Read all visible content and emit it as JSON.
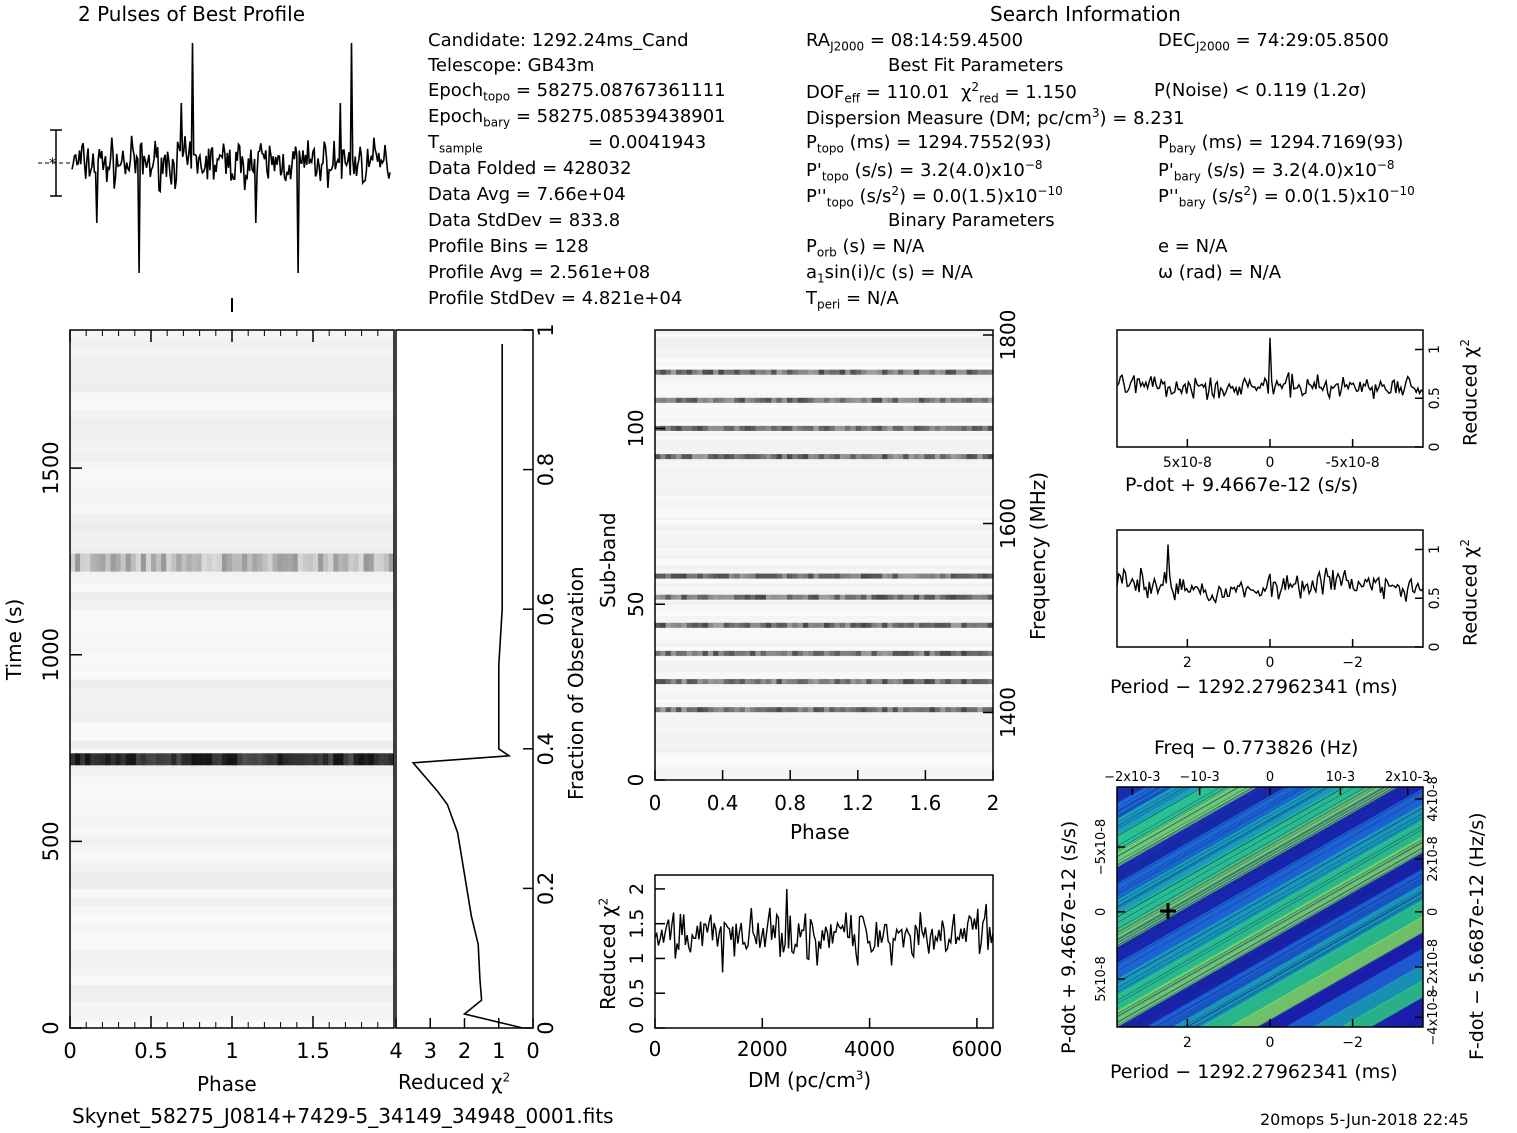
{
  "header": {
    "profile_title": "2 Pulses of Best Profile",
    "search_title": "Search Information"
  },
  "info": {
    "candidate": "Candidate:  1292.24ms_Cand",
    "telescope": "Telescope:  GB43m",
    "epoch_topo_label": "Epoch",
    "epoch_topo_sub": "topo",
    "epoch_topo_value": "= 58275.08767361111",
    "epoch_bary_label": "Epoch",
    "epoch_bary_sub": "bary",
    "epoch_bary_value": "= 58275.08539438901",
    "t_sample_label": "T",
    "t_sample_sub": "sample",
    "t_sample_value": "=   0.0041943",
    "data_folded": "Data Folded      =   428032",
    "data_avg": "Data Avg         =   7.66e+04",
    "data_stddev": "Data StdDev      =   833.8",
    "profile_bins": "Profile Bins     =   128",
    "profile_avg": "Profile Avg      =   2.561e+08",
    "profile_stddev": "Profile StdDev   =   4.821e+04",
    "ra": "= 08:14:59.4500",
    "dec": "= 74:29:05.8500",
    "best_fit_title": "Best Fit Parameters",
    "dof": "= 110.01",
    "chi2": "= 1.150",
    "pnoise": "P(Noise) < 0.119   (1.2σ)",
    "dm_line": "Dispersion Measure (DM; pc/cm",
    "dm_value": ") = 8.231",
    "p_topo": "(ms) =   1294.7552(93)",
    "p_bary": "(ms) =   1294.7169(93)",
    "pd_topo": "(s/s) =   3.2(4.0)x10",
    "pd_bary": "(s/s) =   3.2(4.0)x10",
    "pdd_topo": "(s/s",
    "pdd_topo_value": ") = 0.0(1.5)x10",
    "pdd_bary_value": ") = 0.0(1.5)x10",
    "binary_title": "Binary Parameters",
    "porb": "(s) = N/A",
    "asini": "a",
    "asini_rest": "sin(i)/c (s) = N/A",
    "tperi": "= N/A",
    "ecc": "e = N/A",
    "omega": "ω (rad) = N/A"
  },
  "footer": {
    "filename": "Skynet_58275_J0814+7429-5_34149_34948_0001.fits",
    "stamp": "20mops  5-Jun-2018 22:45"
  },
  "chart_data": [
    {
      "type": "line",
      "name": "profile",
      "title": "2 Pulses of Best Profile",
      "xlim": [
        0,
        2
      ]
    },
    {
      "type": "heatmap",
      "name": "time-phase",
      "xlabel": "Phase",
      "ylabel": "Time (s)",
      "xlim": [
        0,
        2
      ],
      "ylim": [
        0,
        1870
      ],
      "xticks": [
        "0",
        "0.5",
        "1",
        "1.5"
      ],
      "yticks": [
        "0",
        "500",
        "1000",
        "1500"
      ],
      "ytick_values": [
        0,
        500,
        1000,
        1500
      ],
      "dark_bands_s": [
        720,
        1255
      ]
    },
    {
      "type": "line",
      "name": "time-chi2",
      "xlabel": "Reduced χ2",
      "ylabel": "Fraction of Observation",
      "xlim": [
        4,
        0
      ],
      "ylim": [
        0,
        1
      ],
      "xticks": [
        "4",
        "3",
        "2",
        "1",
        "0"
      ],
      "yticks": [
        "0",
        "0.2",
        "0.4",
        "0.6",
        "0.8",
        "1"
      ],
      "points": [
        [
          0.3,
          0.0
        ],
        [
          2.0,
          0.02
        ],
        [
          1.5,
          0.04
        ],
        [
          1.55,
          0.07
        ],
        [
          1.6,
          0.12
        ],
        [
          1.8,
          0.16
        ],
        [
          2.0,
          0.22
        ],
        [
          2.2,
          0.28
        ],
        [
          2.5,
          0.32
        ],
        [
          2.8,
          0.34
        ],
        [
          3.5,
          0.38
        ],
        [
          0.7,
          0.39
        ],
        [
          1.0,
          0.4
        ],
        [
          1.0,
          0.52
        ],
        [
          0.9,
          0.6
        ],
        [
          0.9,
          0.8
        ],
        [
          0.9,
          0.98
        ]
      ]
    },
    {
      "type": "heatmap",
      "name": "subband-phase",
      "xlabel": "Phase",
      "ylabel": "Sub-band",
      "y2label": "Frequency (MHz)",
      "xlim": [
        0,
        2
      ],
      "ylim": [
        0,
        128
      ],
      "xticks": [
        "0",
        "0.4",
        "0.8",
        "1.2",
        "1.6",
        "2"
      ],
      "yticks": [
        "0",
        "50",
        "100"
      ],
      "y2ticks": [
        "1400",
        "1600",
        "1800"
      ],
      "bands": [
        20,
        28,
        36,
        44,
        52,
        58,
        92,
        100,
        108,
        116
      ]
    },
    {
      "type": "line",
      "name": "dm-chi2",
      "xlabel": "DM (pc/cm3)",
      "ylabel": "Reduced χ2",
      "xlim": [
        0,
        6300
      ],
      "ylim": [
        0,
        2.2
      ],
      "xticks": [
        "0",
        "2000",
        "4000",
        "6000"
      ],
      "yticks": [
        "0",
        "0.5",
        "1",
        "1.5",
        "2"
      ]
    },
    {
      "type": "line",
      "name": "pdot-chi2",
      "xlabel": "P-dot + 9.4667e-12 (s/s)",
      "ylabel": "Reduced χ2",
      "ylim": [
        0,
        1.2
      ],
      "xticks": [
        "5x10-8",
        "0",
        "-5x10-8"
      ],
      "yticks": [
        "0",
        "0.5",
        "1"
      ]
    },
    {
      "type": "line",
      "name": "period-chi2",
      "xlabel": "Period − 1292.27962341 (ms)",
      "ylabel": "Reduced χ2",
      "ylim": [
        0,
        1.2
      ],
      "xticks": [
        "2",
        "0",
        "−2"
      ],
      "yticks": [
        "0",
        "0.5",
        "1"
      ]
    },
    {
      "type": "heatmap",
      "name": "p-pdot-plane",
      "title": "Freq − 0.773826 (Hz)",
      "xlabel": "Period − 1292.27962341 (ms)",
      "ylabel": "P-dot + 9.4667e-12 (s/s)",
      "y2label": "F-dot − 5.6687e-12 (Hz/s)",
      "xticks": [
        "2",
        "0",
        "−2"
      ],
      "top_ticks": [
        "−2x10-3",
        "−10-3",
        "0",
        "10-3",
        "2x10-3"
      ],
      "yticks": [
        "−5x10-8",
        "0",
        "5x10-8"
      ],
      "y2ticks": [
        "4x10-8",
        "2x10-8",
        "0",
        "−2x10-8",
        "−4x10-8"
      ],
      "colors": [
        "#1a1aa8",
        "#1e6cd8",
        "#19b4b4",
        "#2fe07a",
        "#8cf050"
      ]
    }
  ]
}
